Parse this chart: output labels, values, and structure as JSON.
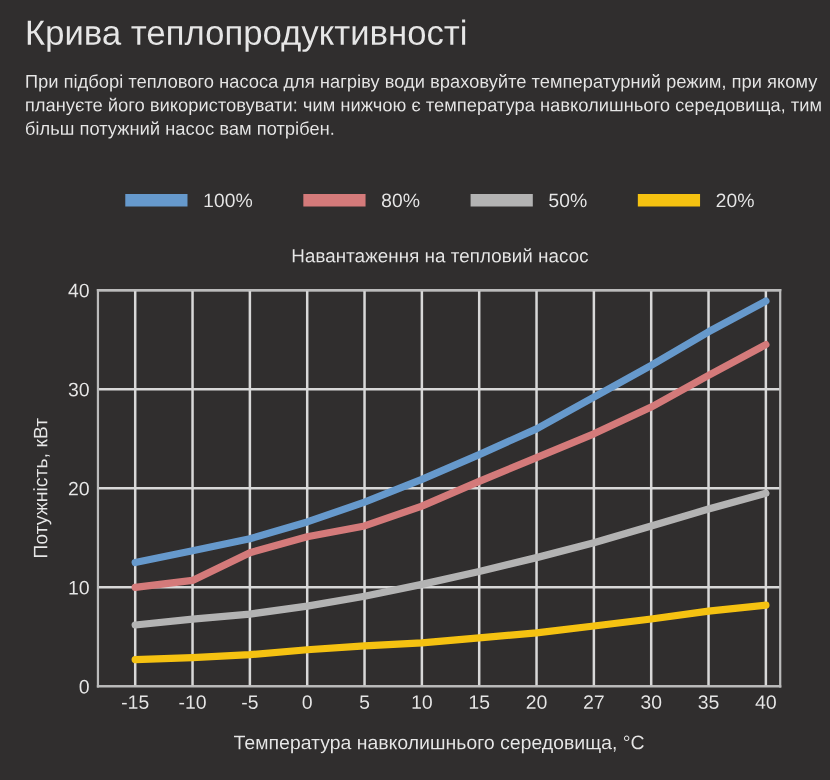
{
  "chart_data": {
    "type": "line",
    "title": "Крива теплопродуктивності",
    "subtitle": "При підборі теплового насоса для нагріву води враховуйте температурний режим, при якому плануєте його використовувати: чим нижчою є температура навколишнього середовища, тим більш потужний насос вам потрібен.",
    "legend_title": "Навантаження на тепловий насос",
    "xlabel": "Температура навколишнього середовища, °C",
    "ylabel": "Потужність, кВт",
    "categories": [
      "-15",
      "-10",
      "-5",
      "0",
      "5",
      "10",
      "15",
      "20",
      "27",
      "30",
      "35",
      "40"
    ],
    "series": [
      {
        "name": "100%",
        "color": "#6699cc",
        "values": [
          12.5,
          13.7,
          14.9,
          16.6,
          18.6,
          20.9,
          23.4,
          26.0,
          29.2,
          32.4,
          35.8,
          38.9
        ]
      },
      {
        "name": "80%",
        "color": "#d47a7a",
        "values": [
          10.0,
          10.7,
          13.5,
          15.1,
          16.2,
          18.2,
          20.7,
          23.1,
          25.5,
          28.2,
          31.4,
          34.5
        ]
      },
      {
        "name": "50%",
        "color": "#b3b3b3",
        "values": [
          6.2,
          6.8,
          7.3,
          8.1,
          9.1,
          10.3,
          11.6,
          13.0,
          14.5,
          16.2,
          17.9,
          19.5
        ]
      },
      {
        "name": "20%",
        "color": "#f5c211",
        "values": [
          2.7,
          2.9,
          3.2,
          3.7,
          4.1,
          4.4,
          4.9,
          5.4,
          6.1,
          6.8,
          7.6,
          8.2
        ]
      }
    ],
    "ylim": [
      0,
      40
    ],
    "yticks": [
      0,
      10,
      20,
      30,
      40
    ],
    "grid": true,
    "legend": "top",
    "marker": "none",
    "line_style": "solid"
  }
}
